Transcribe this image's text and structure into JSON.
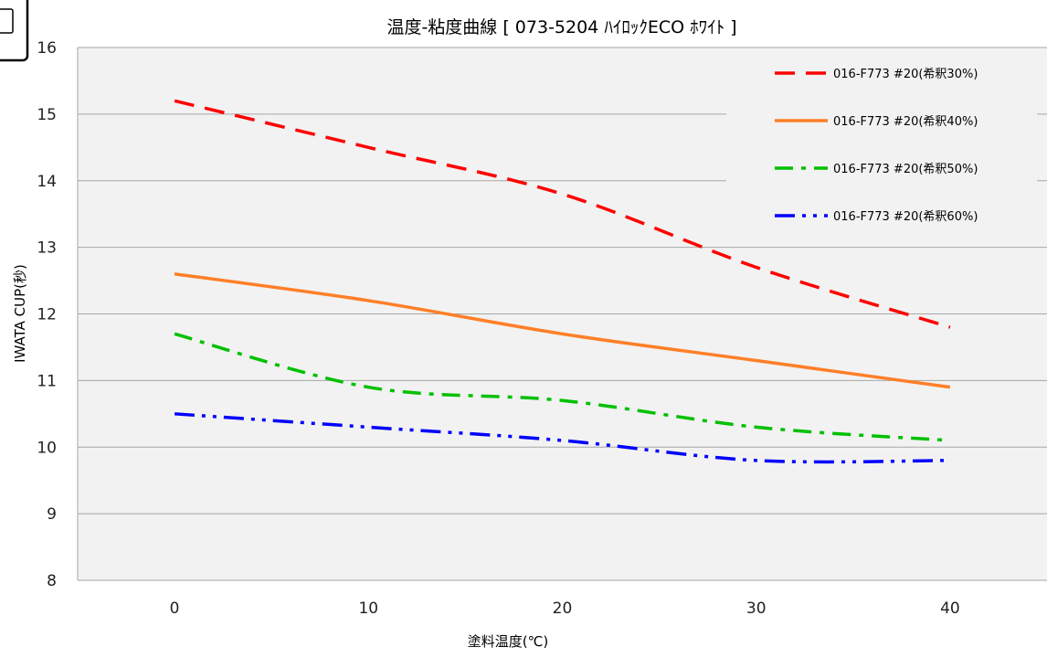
{
  "chart_data": {
    "type": "line",
    "title": "温度-粘度曲線 [ 073-5204 ﾊｲﾛｯｸECO ﾎﾜｲﾄ ]",
    "xlabel": "塗料温度(℃)",
    "ylabel": "IWATA CUP(秒)",
    "xlim": [
      -5,
      45
    ],
    "ylim": [
      8,
      16
    ],
    "x_ticks": [
      0,
      10,
      20,
      30,
      40
    ],
    "y_ticks": [
      8,
      9,
      10,
      11,
      12,
      13,
      14,
      15,
      16
    ],
    "grid": "horizontal",
    "legend_position": "top-right",
    "x": [
      0,
      10,
      20,
      30,
      40
    ],
    "series": [
      {
        "name": "016-F773 #20(希釈30%)",
        "color": "#ff0000",
        "dash": "dashed",
        "values": [
          15.2,
          14.5,
          13.8,
          12.7,
          11.8
        ]
      },
      {
        "name": "016-F773 #20(希釈40%)",
        "color": "#ff7f27",
        "dash": "solid",
        "values": [
          12.6,
          12.2,
          11.7,
          11.3,
          10.9
        ]
      },
      {
        "name": "016-F773 #20(希釈50%)",
        "color": "#00c000",
        "dash": "dash-dot",
        "values": [
          11.7,
          10.9,
          10.7,
          10.3,
          10.1
        ]
      },
      {
        "name": "016-F773 #20(希釈60%)",
        "color": "#0000ff",
        "dash": "dash-dot-dot",
        "values": [
          10.5,
          10.3,
          10.1,
          9.8,
          9.8
        ]
      }
    ]
  }
}
